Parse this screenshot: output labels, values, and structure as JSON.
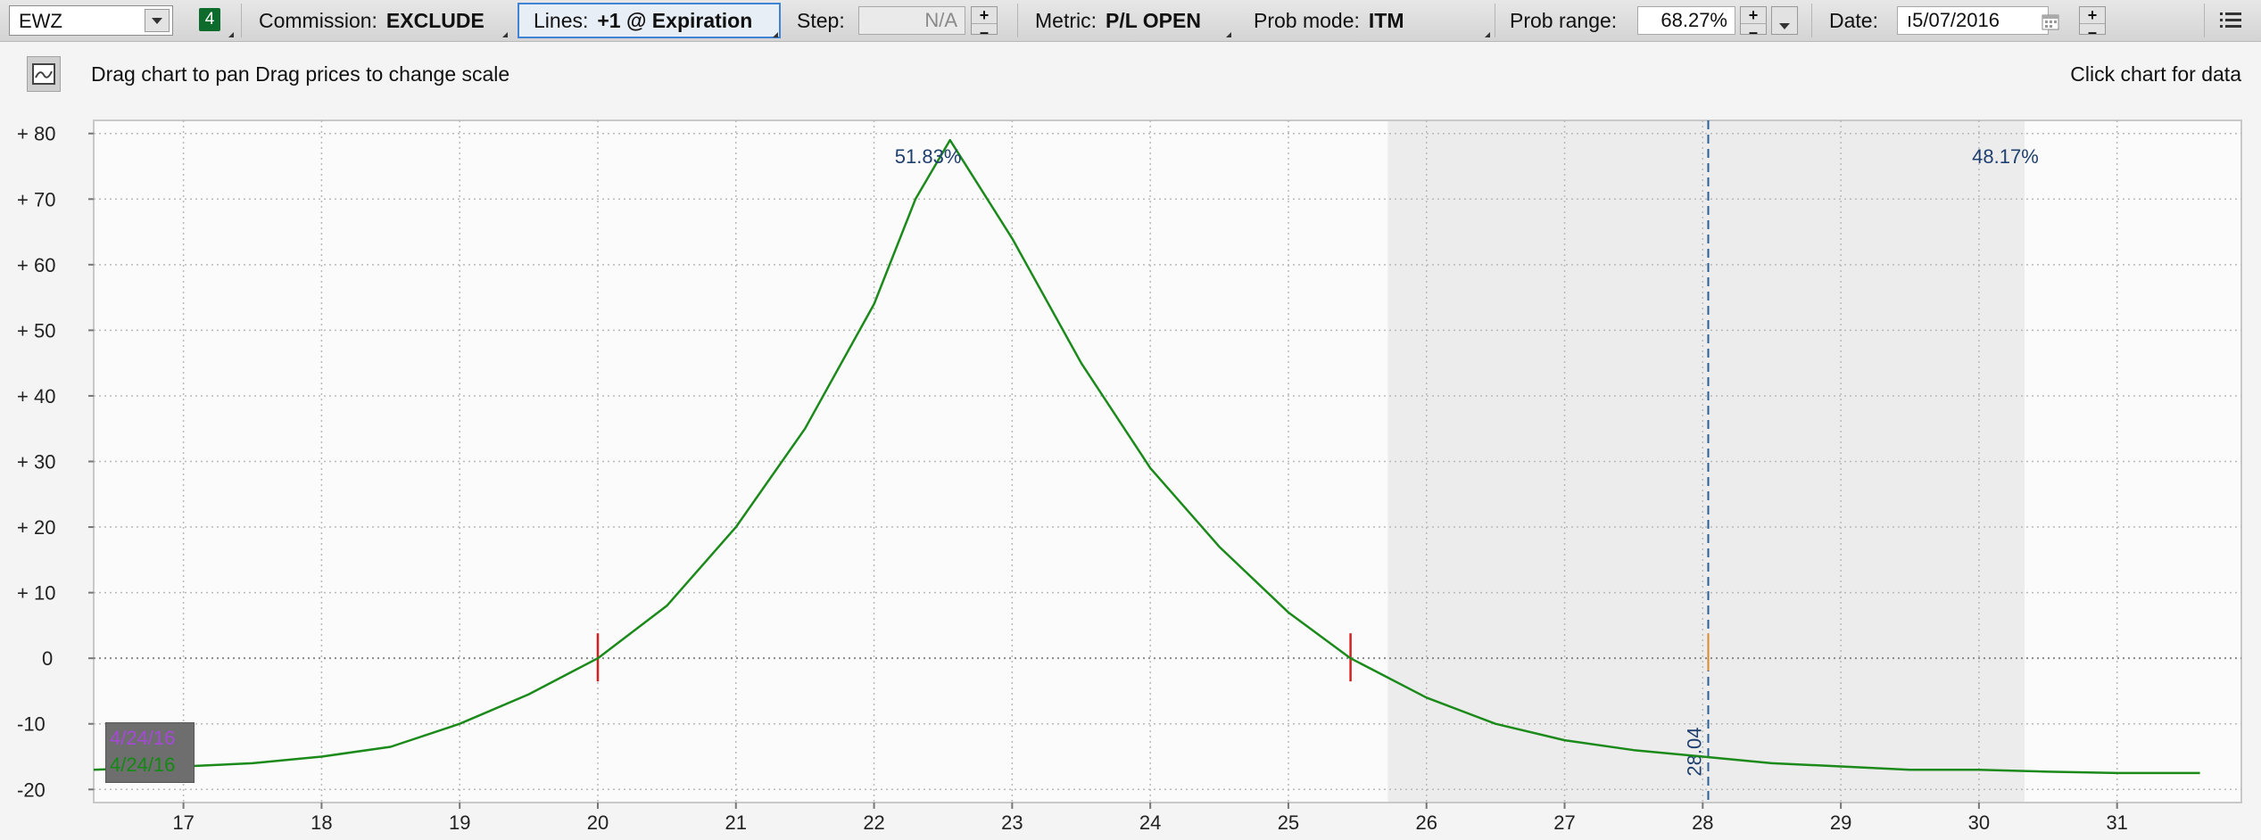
{
  "toolbar": {
    "symbol": "EWZ",
    "badge": "4",
    "commission_label": "Commission:",
    "commission_value": "EXCLUDE",
    "lines_label": "Lines:",
    "lines_value": "+1 @ Expiration",
    "step_label": "Step:",
    "step_value": "N/A",
    "metric_label": "Metric:",
    "metric_value": "P/L OPEN",
    "probmode_label": "Prob mode:",
    "probmode_value": "ITM",
    "probrange_label": "Prob range:",
    "probrange_value": "68.27%",
    "date_label": "Date:",
    "date_value": "ı5/07/2016",
    "icons": [
      "chevron-down-icon",
      "plus-minus-icon",
      "calendar-icon",
      "menu-icon"
    ]
  },
  "subbar": {
    "hint": "Drag chart to pan Drag prices to change scale",
    "click_hint": "Click chart for data",
    "icon": "chart-icon"
  },
  "chart_data": {
    "type": "line",
    "y_ticks": [
      "+ 80",
      "+ 70",
      "+ 60",
      "+ 50",
      "+ 40",
      "+ 30",
      "+ 20",
      "+ 10",
      "0",
      "-10",
      "-20"
    ],
    "x_ticks": [
      "17",
      "18",
      "19",
      "20",
      "21",
      "22",
      "23",
      "24",
      "25",
      "26",
      "27",
      "28",
      "29",
      "30",
      "31"
    ],
    "xlim": [
      16.35,
      31.9
    ],
    "ylim": [
      -22,
      82
    ],
    "grid": true,
    "series": [
      {
        "color": "#1b8a1b",
        "x": [
          16.35,
          17.0,
          17.5,
          18.0,
          18.5,
          19.0,
          19.5,
          20.0,
          20.5,
          21.0,
          21.5,
          22.0,
          22.3,
          22.55,
          23.0,
          23.5,
          24.0,
          24.5,
          25.0,
          25.45,
          26.0,
          26.5,
          27.0,
          27.5,
          28.0,
          28.5,
          29.0,
          29.5,
          30.0,
          30.5,
          31.0,
          31.6
        ],
        "y": [
          -17,
          -16.5,
          -16,
          -15,
          -13.5,
          -10,
          -5.5,
          0,
          8,
          20,
          35,
          54,
          70,
          79,
          64,
          45,
          29,
          17,
          7,
          0,
          -6,
          -10,
          -12.5,
          -14,
          -15,
          -16,
          -16.5,
          -17,
          -17,
          -17.3,
          -17.5,
          -17.5
        ]
      }
    ],
    "shaded_region": [
      25.72,
      30.33
    ],
    "breakeven_points": [
      20.0,
      25.45
    ],
    "current_price": 28.04,
    "current_price_label": "28.04",
    "annotations": [
      {
        "text": "51.83%",
        "x": 22.15,
        "y": 75.5
      },
      {
        "text": "48.17%",
        "x": 29.95,
        "y": 75.5
      }
    ],
    "legend": [
      "4/24/16",
      "4/24/16"
    ],
    "legend_colors": [
      "#a648d8",
      "#138a13"
    ]
  }
}
